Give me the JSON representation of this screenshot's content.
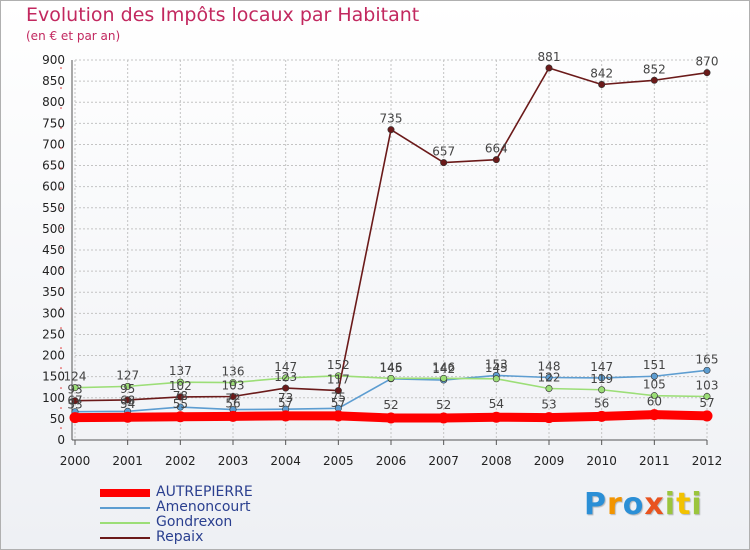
{
  "title": "Evolution des Impôts locaux par Habitant",
  "subtitle": "(en € et par an)",
  "logo": {
    "letters": [
      "P",
      "r",
      "o",
      "x",
      "i",
      "t",
      "i"
    ],
    "colors": [
      "#2b8fd6",
      "#f29400",
      "#2b8fd6",
      "#e9531e",
      "#9bc53d",
      "#f2c200",
      "#9bc53d"
    ]
  },
  "chart_data": {
    "type": "line",
    "x": [
      "2000",
      "2001",
      "2002",
      "2003",
      "2004",
      "2005",
      "2006",
      "2007",
      "2008",
      "2009",
      "2010",
      "2011",
      "2012"
    ],
    "ylim": [
      0,
      900
    ],
    "yticks": [
      0,
      50,
      100,
      150,
      200,
      250,
      300,
      350,
      400,
      450,
      500,
      550,
      600,
      650,
      700,
      750,
      800,
      850,
      900
    ],
    "grid": true,
    "series": [
      {
        "name": "AUTREPIERRE",
        "color": "#ff0000",
        "thick": true,
        "values": [
          53,
          54,
          55,
          56,
          57,
          57,
          52,
          52,
          54,
          53,
          56,
          60,
          57
        ],
        "labels": [
          "53",
          "54",
          "55",
          "56",
          "57",
          "57",
          "52",
          "52",
          "54",
          "53",
          "56",
          "60",
          "57"
        ]
      },
      {
        "name": "Amenoncourt",
        "color": "#5d9dd1",
        "thick": false,
        "values": [
          67,
          68,
          78,
          72,
          73,
          75,
          145,
          142,
          153,
          148,
          147,
          151,
          165
        ],
        "labels": [
          "67",
          "68",
          "78",
          "72",
          "73",
          "75",
          "145",
          "142",
          "153",
          "148",
          "147",
          "151",
          "165"
        ]
      },
      {
        "name": "Gondrexon",
        "color": "#9cde77",
        "thick": false,
        "values": [
          124,
          127,
          137,
          136,
          147,
          152,
          146,
          146,
          145,
          122,
          119,
          105,
          103
        ],
        "labels": [
          "124",
          "127",
          "137",
          "136",
          "147",
          "152",
          "146",
          "146",
          "145",
          "122",
          "119",
          "105",
          "103"
        ]
      },
      {
        "name": "Repaix",
        "color": "#6b1a1a",
        "thick": false,
        "values": [
          93,
          95,
          102,
          103,
          123,
          117,
          735,
          657,
          664,
          881,
          842,
          852,
          870
        ],
        "labels": [
          "93",
          "95",
          "102",
          "103",
          "123",
          "117",
          "735",
          "657",
          "664",
          "881",
          "842",
          "852",
          "870"
        ]
      }
    ]
  }
}
